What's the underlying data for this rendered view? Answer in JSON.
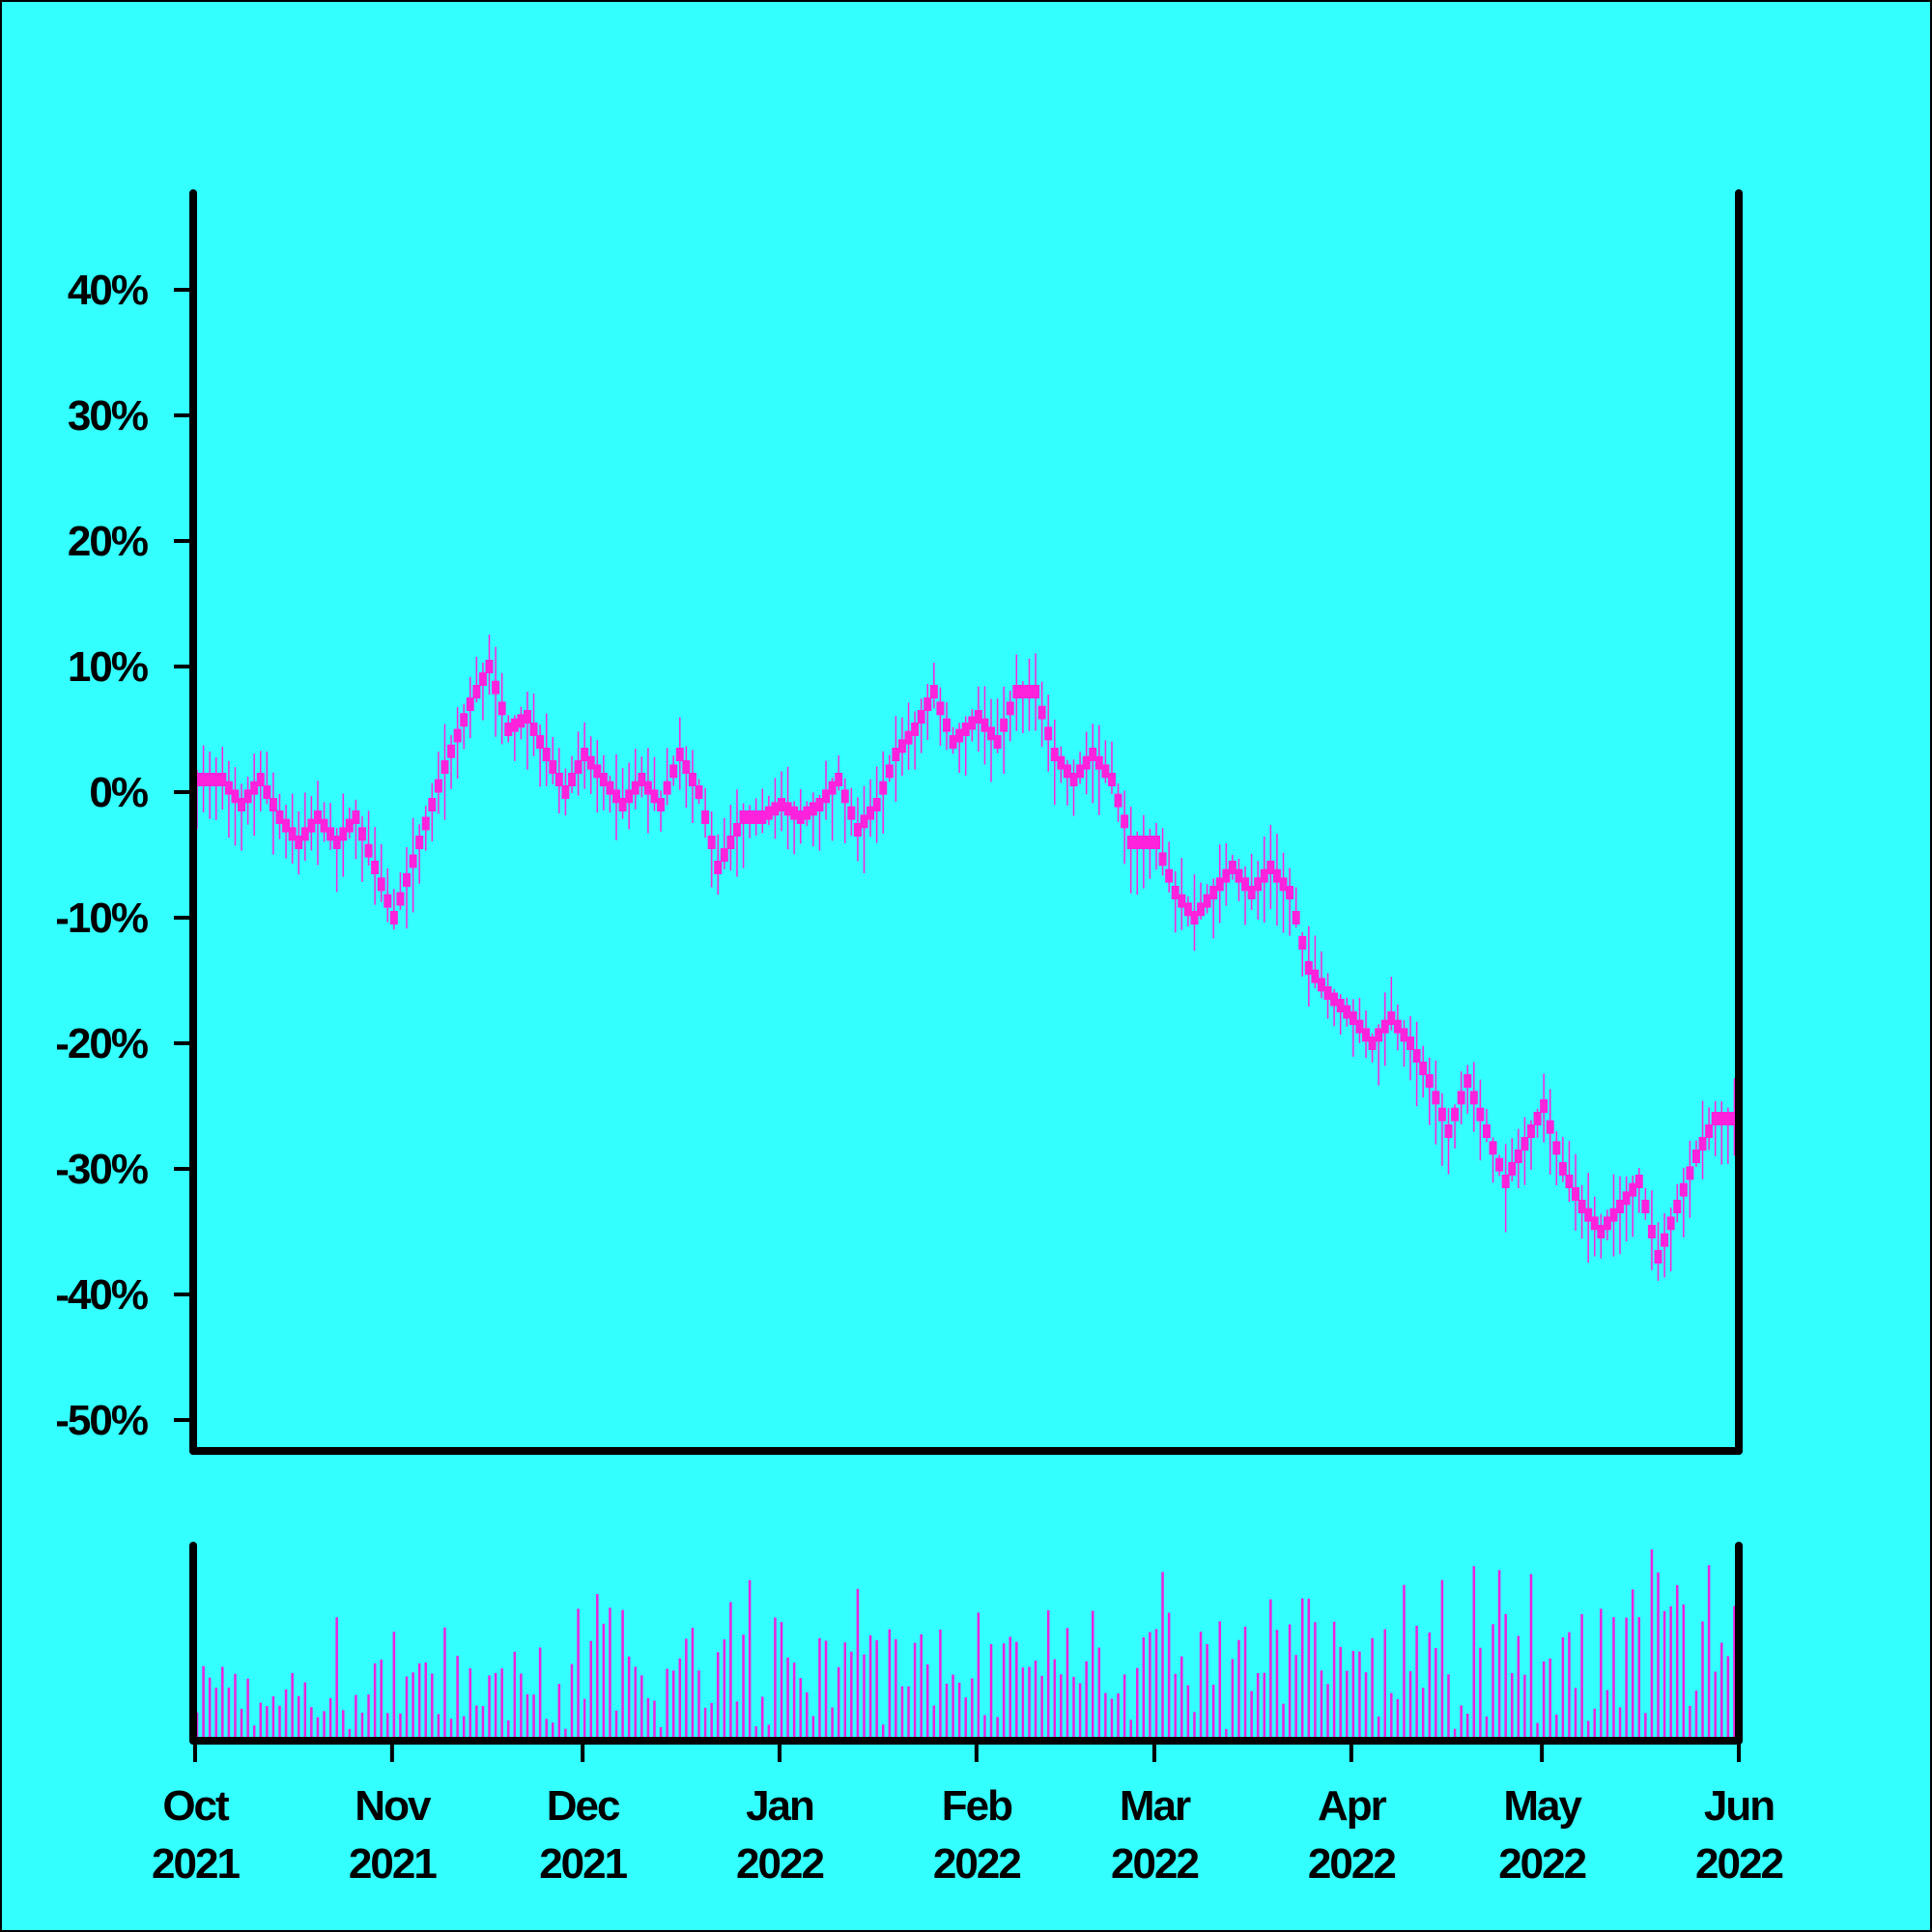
{
  "chart_data": {
    "type": "candlestick",
    "title": "",
    "xlabel": "",
    "ylabel": "",
    "ylim": [
      -50,
      45
    ],
    "y_tick_values": [
      40,
      30,
      20,
      10,
      0,
      -10,
      -20,
      -30,
      -40,
      -50
    ],
    "y_tick_labels": [
      "40%",
      "30%",
      "20%",
      "10%",
      "0%",
      "-10%",
      "-20%",
      "-30%",
      "-40%",
      "-50%"
    ],
    "xlim": [
      "2021-10-01",
      "2022-06-01"
    ],
    "x_ticks": [
      {
        "date": "2021-10-01",
        "month": "Oct",
        "year": "2021"
      },
      {
        "date": "2021-11-01",
        "month": "Nov",
        "year": "2021"
      },
      {
        "date": "2021-12-01",
        "month": "Dec",
        "year": "2021"
      },
      {
        "date": "2022-01-01",
        "month": "Jan",
        "year": "2022"
      },
      {
        "date": "2022-02-01",
        "month": "Feb",
        "year": "2022"
      },
      {
        "date": "2022-03-01",
        "month": "Mar",
        "year": "2022"
      },
      {
        "date": "2022-04-01",
        "month": "Apr",
        "year": "2022"
      },
      {
        "date": "2022-05-01",
        "month": "May",
        "year": "2022"
      },
      {
        "date": "2022-06-01",
        "month": "Jun",
        "year": "2022"
      }
    ],
    "series": [
      {
        "values_percent": [
          {
            "date": "2021-10-01",
            "value": 1
          },
          {
            "date": "2021-10-05",
            "value": 1
          },
          {
            "date": "2021-10-08",
            "value": -1
          },
          {
            "date": "2021-10-11",
            "value": 1
          },
          {
            "date": "2021-10-14",
            "value": -2
          },
          {
            "date": "2021-10-17",
            "value": -4
          },
          {
            "date": "2021-10-20",
            "value": -2
          },
          {
            "date": "2021-10-23",
            "value": -4
          },
          {
            "date": "2021-10-26",
            "value": -2
          },
          {
            "date": "2021-10-29",
            "value": -6
          },
          {
            "date": "2021-11-01",
            "value": -10
          },
          {
            "date": "2021-11-05",
            "value": -4
          },
          {
            "date": "2021-11-09",
            "value": 2
          },
          {
            "date": "2021-11-13",
            "value": 7
          },
          {
            "date": "2021-11-16",
            "value": 10
          },
          {
            "date": "2021-11-19",
            "value": 5
          },
          {
            "date": "2021-11-22",
            "value": 6
          },
          {
            "date": "2021-11-25",
            "value": 3
          },
          {
            "date": "2021-11-28",
            "value": 0
          },
          {
            "date": "2021-12-01",
            "value": 3
          },
          {
            "date": "2021-12-04",
            "value": 1
          },
          {
            "date": "2021-12-07",
            "value": -1
          },
          {
            "date": "2021-12-10",
            "value": 1
          },
          {
            "date": "2021-12-13",
            "value": -1
          },
          {
            "date": "2021-12-16",
            "value": 3
          },
          {
            "date": "2021-12-19",
            "value": 0
          },
          {
            "date": "2021-12-22",
            "value": -6
          },
          {
            "date": "2021-12-26",
            "value": -2
          },
          {
            "date": "2021-12-29",
            "value": -2
          },
          {
            "date": "2022-01-01",
            "value": -1
          },
          {
            "date": "2022-01-04",
            "value": -2
          },
          {
            "date": "2022-01-07",
            "value": -1
          },
          {
            "date": "2022-01-10",
            "value": 1
          },
          {
            "date": "2022-01-13",
            "value": -3
          },
          {
            "date": "2022-01-16",
            "value": -1
          },
          {
            "date": "2022-01-19",
            "value": 3
          },
          {
            "date": "2022-01-22",
            "value": 5
          },
          {
            "date": "2022-01-25",
            "value": 8
          },
          {
            "date": "2022-01-28",
            "value": 4
          },
          {
            "date": "2022-02-01",
            "value": 6
          },
          {
            "date": "2022-02-04",
            "value": 4
          },
          {
            "date": "2022-02-07",
            "value": 8
          },
          {
            "date": "2022-02-10",
            "value": 8
          },
          {
            "date": "2022-02-13",
            "value": 3
          },
          {
            "date": "2022-02-16",
            "value": 1
          },
          {
            "date": "2022-02-19",
            "value": 3
          },
          {
            "date": "2022-02-22",
            "value": 1
          },
          {
            "date": "2022-02-25",
            "value": -4
          },
          {
            "date": "2022-03-01",
            "value": -4
          },
          {
            "date": "2022-03-04",
            "value": -8
          },
          {
            "date": "2022-03-07",
            "value": -10
          },
          {
            "date": "2022-03-10",
            "value": -8
          },
          {
            "date": "2022-03-13",
            "value": -6
          },
          {
            "date": "2022-03-16",
            "value": -8
          },
          {
            "date": "2022-03-19",
            "value": -6
          },
          {
            "date": "2022-03-22",
            "value": -8
          },
          {
            "date": "2022-03-25",
            "value": -14
          },
          {
            "date": "2022-03-28",
            "value": -16
          },
          {
            "date": "2022-04-01",
            "value": -18
          },
          {
            "date": "2022-04-04",
            "value": -20
          },
          {
            "date": "2022-04-07",
            "value": -18
          },
          {
            "date": "2022-04-10",
            "value": -20
          },
          {
            "date": "2022-04-13",
            "value": -23
          },
          {
            "date": "2022-04-16",
            "value": -27
          },
          {
            "date": "2022-04-19",
            "value": -23
          },
          {
            "date": "2022-04-22",
            "value": -27
          },
          {
            "date": "2022-04-25",
            "value": -31
          },
          {
            "date": "2022-04-28",
            "value": -28
          },
          {
            "date": "2022-05-01",
            "value": -25
          },
          {
            "date": "2022-05-04",
            "value": -30
          },
          {
            "date": "2022-05-07",
            "value": -33
          },
          {
            "date": "2022-05-10",
            "value": -35
          },
          {
            "date": "2022-05-13",
            "value": -33
          },
          {
            "date": "2022-05-16",
            "value": -31
          },
          {
            "date": "2022-05-19",
            "value": -37
          },
          {
            "date": "2022-05-22",
            "value": -33
          },
          {
            "date": "2022-05-25",
            "value": -29
          },
          {
            "date": "2022-05-28",
            "value": -26
          },
          {
            "date": "2022-06-01",
            "value": -26
          }
        ]
      }
    ],
    "volume_panel": true,
    "grid": false,
    "colors": {
      "background": "#33ffff",
      "candles": "#ff22dd",
      "volume": "#ee22dd",
      "axes": "#000000"
    }
  }
}
